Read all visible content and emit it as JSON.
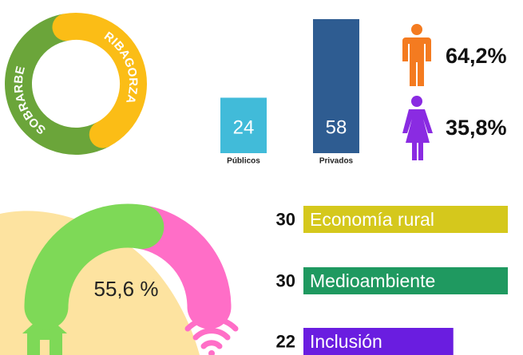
{
  "chart_data": [
    {
      "type": "pie",
      "categories": [
        "SOBRARBE",
        "RIBAGORZA"
      ],
      "values": [
        55,
        45
      ],
      "colors": [
        "#6ba53a",
        "#fbbd16"
      ]
    },
    {
      "type": "bar",
      "categories": [
        "Públicos",
        "Privados"
      ],
      "values": [
        24,
        58
      ],
      "colors": [
        "#41bbd9",
        "#2e5c91"
      ]
    },
    {
      "type": "pictogram",
      "values": [
        64.2,
        35.8
      ],
      "value_labels": [
        "64,2%",
        "35,8%"
      ],
      "colors": [
        "#f47b20",
        "#8a2be2"
      ]
    },
    {
      "type": "gauge",
      "values": [
        55.6
      ],
      "value_labels": [
        "55,6 %"
      ],
      "colors": [
        "#7ed957",
        "#ff6ec7"
      ]
    },
    {
      "type": "hbar",
      "categories": [
        "Economía rural",
        "Medioambiente",
        "Inclusión"
      ],
      "values": [
        30,
        30,
        22
      ],
      "colors": [
        "#d5c81c",
        "#1f9960",
        "#6a1de0"
      ]
    }
  ]
}
